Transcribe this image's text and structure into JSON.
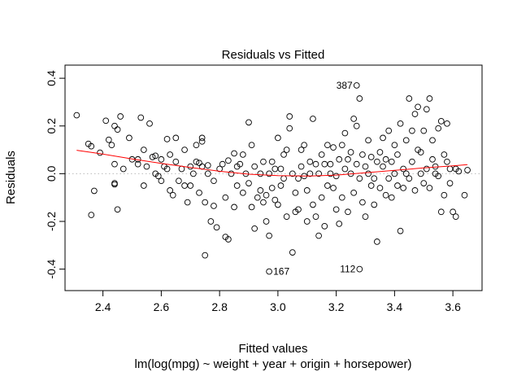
{
  "chart_data": {
    "type": "scatter",
    "title": "Residuals vs Fitted",
    "xlabel": "Fitted values",
    "subtitle": "lm(log(mpg) ~ weight + year + origin + horsepower)",
    "ylabel": "Residuals",
    "xlim": [
      2.27,
      3.7
    ],
    "ylim": [
      -0.49,
      0.455
    ],
    "x_ticks": [
      2.4,
      2.6,
      2.8,
      3.0,
      3.2,
      3.4,
      3.6
    ],
    "y_ticks": [
      -0.4,
      -0.2,
      0.0,
      0.2,
      0.4
    ],
    "x_tick_labels": [
      "2.4",
      "2.6",
      "2.8",
      "3.0",
      "3.2",
      "3.4",
      "3.6"
    ],
    "y_tick_labels": [
      "-0.4",
      "-0.2",
      "0.0",
      "0.2",
      "0.4"
    ],
    "reference_line_y": 0,
    "grid": false,
    "legend": "none",
    "colors": {
      "points": "#000000",
      "smooth": "#ff0000",
      "reference": "#bbbbbb"
    },
    "smooth_line": [
      [
        2.31,
        0.098
      ],
      [
        2.4,
        0.082
      ],
      [
        2.5,
        0.062
      ],
      [
        2.6,
        0.043
      ],
      [
        2.7,
        0.026
      ],
      [
        2.8,
        0.01
      ],
      [
        2.9,
        -0.002
      ],
      [
        3.0,
        -0.008
      ],
      [
        3.1,
        -0.01
      ],
      [
        3.2,
        -0.006
      ],
      [
        3.3,
        0.004
      ],
      [
        3.4,
        0.014
      ],
      [
        3.5,
        0.024
      ],
      [
        3.6,
        0.033
      ],
      [
        3.65,
        0.038
      ]
    ],
    "labeled_points": [
      {
        "label": "387",
        "x": 3.27,
        "y": 0.37,
        "side": "left"
      },
      {
        "label": "167",
        "x": 2.97,
        "y": -0.41,
        "side": "right"
      },
      {
        "label": "112",
        "x": 3.28,
        "y": -0.4,
        "side": "left"
      }
    ],
    "points": [
      [
        2.31,
        0.245
      ],
      [
        2.35,
        0.125
      ],
      [
        2.36,
        0.115
      ],
      [
        2.36,
        -0.173
      ],
      [
        2.37,
        -0.072
      ],
      [
        2.39,
        0.088
      ],
      [
        2.41,
        0.222
      ],
      [
        2.42,
        0.142
      ],
      [
        2.43,
        0.12
      ],
      [
        2.44,
        0.2
      ],
      [
        2.44,
        -0.04
      ],
      [
        2.44,
        -0.045
      ],
      [
        2.44,
        0.04
      ],
      [
        2.45,
        0.185
      ],
      [
        2.46,
        0.24
      ],
      [
        2.45,
        -0.15
      ],
      [
        2.47,
        0.02
      ],
      [
        2.49,
        0.15
      ],
      [
        2.5,
        0.06
      ],
      [
        2.52,
        0.06
      ],
      [
        2.52,
        0.04
      ],
      [
        2.53,
        0.235
      ],
      [
        2.54,
        0.1
      ],
      [
        2.54,
        -0.05
      ],
      [
        2.55,
        0.03
      ],
      [
        2.56,
        0.21
      ],
      [
        2.57,
        0.07
      ],
      [
        2.58,
        0.0
      ],
      [
        2.58,
        0.075
      ],
      [
        2.59,
        -0.01
      ],
      [
        2.6,
        0.06
      ],
      [
        2.6,
        -0.03
      ],
      [
        2.61,
        0.03
      ],
      [
        2.62,
        0.145
      ],
      [
        2.62,
        0.02
      ],
      [
        2.63,
        -0.07
      ],
      [
        2.63,
        0.08
      ],
      [
        2.64,
        -0.09
      ],
      [
        2.65,
        0.05
      ],
      [
        2.65,
        0.15
      ],
      [
        2.66,
        -0.03
      ],
      [
        2.67,
        0.02
      ],
      [
        2.68,
        0.1
      ],
      [
        2.68,
        -0.05
      ],
      [
        2.69,
        -0.12
      ],
      [
        2.7,
        0.03
      ],
      [
        2.7,
        -0.05
      ],
      [
        2.71,
        0.0
      ],
      [
        2.72,
        0.12
      ],
      [
        2.72,
        0.05
      ],
      [
        2.73,
        0.045
      ],
      [
        2.73,
        -0.08
      ],
      [
        2.74,
        0.135
      ],
      [
        2.74,
        0.15
      ],
      [
        2.74,
        0.03
      ],
      [
        2.75,
        -0.12
      ],
      [
        2.75,
        -0.342
      ],
      [
        2.76,
        0.035
      ],
      [
        2.76,
        0.0
      ],
      [
        2.77,
        -0.2
      ],
      [
        2.78,
        -0.135
      ],
      [
        2.78,
        -0.03
      ],
      [
        2.79,
        -0.225
      ],
      [
        2.8,
        0.02
      ],
      [
        2.81,
        0.04
      ],
      [
        2.82,
        -0.1
      ],
      [
        2.82,
        -0.265
      ],
      [
        2.83,
        0.055
      ],
      [
        2.83,
        -0.275
      ],
      [
        2.84,
        0.0
      ],
      [
        2.85,
        -0.14
      ],
      [
        2.85,
        0.085
      ],
      [
        2.86,
        -0.05
      ],
      [
        2.86,
        0.03
      ],
      [
        2.87,
        0.04
      ],
      [
        2.88,
        -0.08
      ],
      [
        2.88,
        0.08
      ],
      [
        2.89,
        0.0
      ],
      [
        2.9,
        0.215
      ],
      [
        2.9,
        -0.04
      ],
      [
        2.91,
        0.12
      ],
      [
        2.91,
        -0.14
      ],
      [
        2.92,
        0.03
      ],
      [
        2.92,
        -0.23
      ],
      [
        2.93,
        -0.1
      ],
      [
        2.94,
        0.0
      ],
      [
        2.94,
        -0.07
      ],
      [
        2.95,
        0.05
      ],
      [
        2.95,
        -0.12
      ],
      [
        2.96,
        -0.09
      ],
      [
        2.96,
        -0.2
      ],
      [
        2.97,
        -0.26
      ],
      [
        2.97,
        0.0
      ],
      [
        2.98,
        -0.06
      ],
      [
        2.98,
        0.05
      ],
      [
        2.99,
        -0.11
      ],
      [
        2.99,
        0.02
      ],
      [
        3.0,
        0.15
      ],
      [
        3.0,
        -0.13
      ],
      [
        3.01,
        -0.05
      ],
      [
        3.01,
        0.02
      ],
      [
        3.02,
        0.08
      ],
      [
        3.02,
        -0.02
      ],
      [
        3.03,
        -0.18
      ],
      [
        3.03,
        0.1
      ],
      [
        3.04,
        0.19
      ],
      [
        3.04,
        0.24
      ],
      [
        3.05,
        -0.33
      ],
      [
        3.05,
        0.0
      ],
      [
        3.06,
        -0.16
      ],
      [
        3.06,
        -0.08
      ],
      [
        3.07,
        -0.15
      ],
      [
        3.07,
        -0.02
      ],
      [
        3.08,
        0.1
      ],
      [
        3.08,
        0.03
      ],
      [
        3.09,
        -0.01
      ],
      [
        3.09,
        0.12
      ],
      [
        3.1,
        -0.07
      ],
      [
        3.1,
        -0.2
      ],
      [
        3.11,
        0.05
      ],
      [
        3.11,
        0.0
      ],
      [
        3.12,
        -0.13
      ],
      [
        3.12,
        0.23
      ],
      [
        3.13,
        -0.18
      ],
      [
        3.13,
        0.04
      ],
      [
        3.14,
        -0.26
      ],
      [
        3.14,
        0.0
      ],
      [
        3.15,
        -0.1
      ],
      [
        3.15,
        0.08
      ],
      [
        3.16,
        0.04
      ],
      [
        3.16,
        -0.22
      ],
      [
        3.17,
        0.12
      ],
      [
        3.17,
        -0.05
      ],
      [
        3.18,
        0.0
      ],
      [
        3.18,
        0.04
      ],
      [
        3.19,
        -0.06
      ],
      [
        3.19,
        0.11
      ],
      [
        3.2,
        -0.15
      ],
      [
        3.2,
        -0.01
      ],
      [
        3.21,
        -0.21
      ],
      [
        3.21,
        0.06
      ],
      [
        3.22,
        0.12
      ],
      [
        3.22,
        -0.1
      ],
      [
        3.23,
        0.17
      ],
      [
        3.23,
        0.02
      ],
      [
        3.24,
        -0.16
      ],
      [
        3.24,
        0.06
      ],
      [
        3.25,
        0.09
      ],
      [
        3.25,
        0.0
      ],
      [
        3.26,
        0.23
      ],
      [
        3.26,
        -0.08
      ],
      [
        3.27,
        0.2
      ],
      [
        3.27,
        0.04
      ],
      [
        3.28,
        0.315
      ],
      [
        3.28,
        -0.02
      ],
      [
        3.29,
        0.08
      ],
      [
        3.29,
        -0.12
      ],
      [
        3.3,
        0.03
      ],
      [
        3.3,
        -0.18
      ],
      [
        3.31,
        0.0
      ],
      [
        3.31,
        0.14
      ],
      [
        3.32,
        -0.05
      ],
      [
        3.32,
        0.07
      ],
      [
        3.33,
        -0.02
      ],
      [
        3.33,
        -0.13
      ],
      [
        3.34,
        0.05
      ],
      [
        3.34,
        -0.285
      ],
      [
        3.35,
        0.09
      ],
      [
        3.35,
        -0.06
      ],
      [
        3.36,
        0.03
      ],
      [
        3.36,
        0.15
      ],
      [
        3.37,
        -0.09
      ],
      [
        3.37,
        0.06
      ],
      [
        3.38,
        0.18
      ],
      [
        3.38,
        -0.02
      ],
      [
        3.39,
        0.05
      ],
      [
        3.39,
        -0.1
      ],
      [
        3.4,
        0.12
      ],
      [
        3.4,
        0.0
      ],
      [
        3.41,
        -0.05
      ],
      [
        3.41,
        0.08
      ],
      [
        3.42,
        0.21
      ],
      [
        3.42,
        -0.24
      ],
      [
        3.43,
        0.02
      ],
      [
        3.43,
        -0.06
      ],
      [
        3.44,
        0.14
      ],
      [
        3.44,
        0.0
      ],
      [
        3.45,
        0.315
      ],
      [
        3.45,
        -0.02
      ],
      [
        3.46,
        0.18
      ],
      [
        3.46,
        0.05
      ],
      [
        3.47,
        0.25
      ],
      [
        3.47,
        -0.07
      ],
      [
        3.48,
        0.28
      ],
      [
        3.48,
        0.1
      ],
      [
        3.49,
        0.0
      ],
      [
        3.49,
        0.09
      ],
      [
        3.5,
        -0.04
      ],
      [
        3.5,
        0.18
      ],
      [
        3.51,
        0.27
      ],
      [
        3.51,
        0.02
      ],
      [
        3.52,
        0.315
      ],
      [
        3.52,
        -0.06
      ],
      [
        3.53,
        0.06
      ],
      [
        3.53,
        0.14
      ],
      [
        3.54,
        0.0
      ],
      [
        3.54,
        0.03
      ],
      [
        3.55,
        0.19
      ],
      [
        3.55,
        -0.01
      ],
      [
        3.56,
        0.22
      ],
      [
        3.56,
        -0.16
      ],
      [
        3.57,
        0.08
      ],
      [
        3.57,
        -0.09
      ],
      [
        3.58,
        0.05
      ],
      [
        3.58,
        0.21
      ],
      [
        3.59,
        -0.04
      ],
      [
        3.59,
        0.02
      ],
      [
        3.6,
        -0.16
      ],
      [
        3.61,
        0.02
      ],
      [
        3.61,
        -0.18
      ],
      [
        3.62,
        0.01
      ],
      [
        3.64,
        -0.09
      ],
      [
        3.65,
        0.015
      ]
    ]
  }
}
